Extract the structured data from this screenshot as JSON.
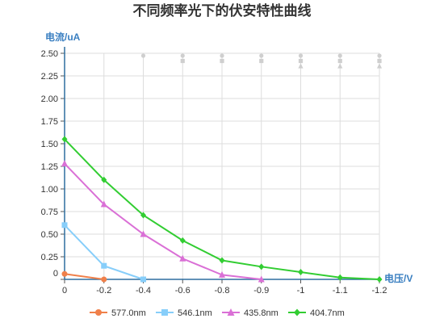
{
  "chart_data": {
    "type": "line",
    "title": "不同频率光下的伏安特性曲线",
    "xlabel": "电压/V",
    "ylabel": "电流/uA",
    "x": [
      0,
      -0.2,
      -0.4,
      -0.6,
      -0.8,
      -0.9,
      -1,
      -1.1,
      -1.2
    ],
    "x_tick_labels": [
      "0",
      "-0.2",
      "-0.4",
      "-0.6",
      "-0.8",
      "-0.9",
      "-1",
      "-1.1",
      "-1.2"
    ],
    "y_tick_labels": [
      "0",
      "0.25",
      "0.50",
      "0.75",
      "1.00",
      "1.25",
      "1.50",
      "1.75",
      "2.00",
      "2.25",
      "2.50"
    ],
    "y_ticks": [
      0,
      0.25,
      0.5,
      0.75,
      1.0,
      1.25,
      1.5,
      1.75,
      2.0,
      2.25,
      2.5
    ],
    "ylim": [
      0,
      2.5
    ],
    "grid": true,
    "legend_position": "bottom",
    "series": [
      {
        "name": "577.0nm",
        "color": "#f0804a",
        "marker": "circle",
        "values": [
          0.06,
          0.0,
          null,
          null,
          null,
          null,
          null,
          null,
          null
        ]
      },
      {
        "name": "546.1nm",
        "color": "#87cefa",
        "marker": "square",
        "values": [
          0.6,
          0.15,
          0.0,
          null,
          null,
          null,
          null,
          null,
          null
        ]
      },
      {
        "name": "435.8nm",
        "color": "#da70d6",
        "marker": "triangle",
        "values": [
          1.28,
          0.83,
          0.5,
          0.23,
          0.05,
          0.0,
          null,
          null,
          null
        ]
      },
      {
        "name": "404.7nm",
        "color": "#32cd32",
        "marker": "diamond",
        "values": [
          1.55,
          1.1,
          0.71,
          0.43,
          0.21,
          0.14,
          0.08,
          0.02,
          0.0
        ]
      }
    ]
  }
}
